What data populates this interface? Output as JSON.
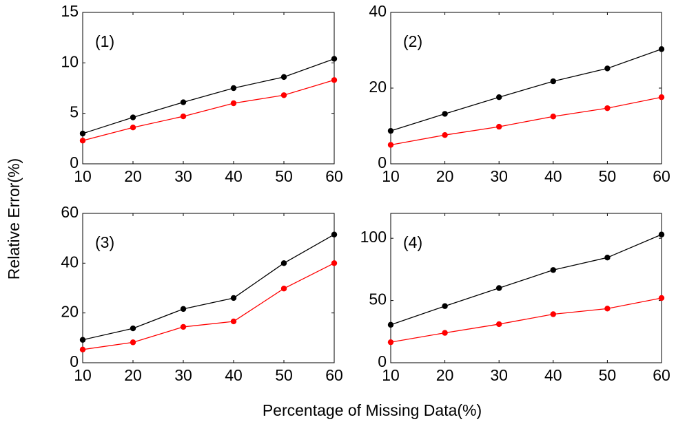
{
  "xlabel": "Percentage of Missing Data(%)",
  "ylabel": "Relative Error(%)",
  "chart_data": [
    {
      "type": "line",
      "annotation": "(1)",
      "x": [
        10,
        20,
        30,
        40,
        50,
        60
      ],
      "xlim": [
        10,
        60
      ],
      "xticks": [
        10,
        20,
        30,
        40,
        50,
        60
      ],
      "ylim": [
        0,
        15
      ],
      "yticks": [
        0,
        5,
        10,
        15
      ],
      "series": [
        {
          "color": "#000000",
          "values": [
            3.0,
            4.6,
            6.1,
            7.5,
            8.6,
            10.4
          ]
        },
        {
          "color": "#ff0000",
          "values": [
            2.3,
            3.6,
            4.7,
            6.0,
            6.8,
            8.3
          ]
        }
      ]
    },
    {
      "type": "line",
      "annotation": "(2)",
      "x": [
        10,
        20,
        30,
        40,
        50,
        60
      ],
      "xlim": [
        10,
        60
      ],
      "xticks": [
        10,
        20,
        30,
        40,
        50,
        60
      ],
      "ylim": [
        0,
        40
      ],
      "yticks": [
        0,
        20,
        40
      ],
      "series": [
        {
          "color": "#000000",
          "values": [
            8.7,
            13.2,
            17.6,
            21.8,
            25.2,
            30.3
          ]
        },
        {
          "color": "#ff0000",
          "values": [
            5.0,
            7.6,
            9.8,
            12.5,
            14.7,
            17.6
          ]
        }
      ]
    },
    {
      "type": "line",
      "annotation": "(3)",
      "x": [
        10,
        20,
        30,
        40,
        50,
        60
      ],
      "xlim": [
        10,
        60
      ],
      "xticks": [
        10,
        20,
        30,
        40,
        50,
        60
      ],
      "ylim": [
        0,
        60
      ],
      "yticks": [
        0,
        20,
        40,
        60
      ],
      "series": [
        {
          "color": "#000000",
          "values": [
            9.2,
            13.8,
            21.6,
            26.0,
            40.0,
            51.5
          ]
        },
        {
          "color": "#ff0000",
          "values": [
            5.3,
            8.2,
            14.4,
            16.6,
            29.8,
            40.0
          ]
        }
      ]
    },
    {
      "type": "line",
      "annotation": "(4)",
      "x": [
        10,
        20,
        30,
        40,
        50,
        60
      ],
      "xlim": [
        10,
        60
      ],
      "xticks": [
        10,
        20,
        30,
        40,
        50,
        60
      ],
      "ylim": [
        0,
        120
      ],
      "yticks": [
        0,
        50,
        100
      ],
      "series": [
        {
          "color": "#000000",
          "values": [
            30.5,
            45.5,
            60,
            74.5,
            84.5,
            103
          ]
        },
        {
          "color": "#ff0000",
          "values": [
            16.5,
            24,
            31,
            39,
            43.5,
            52
          ]
        }
      ]
    }
  ]
}
